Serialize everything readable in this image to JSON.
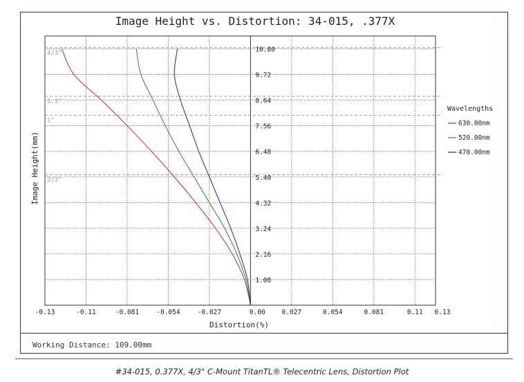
{
  "chart_data": {
    "type": "line",
    "title": "Image Height vs. Distortion: 34-015, .377X",
    "xlabel": "Distortion(%)",
    "ylabel": "Image Height(mm)",
    "xlim": [
      -0.135,
      0.1215
    ],
    "ylim": [
      0,
      11.34
    ],
    "x_ticks": [
      "-0.13",
      "-0.11",
      "-0.081",
      "-0.054",
      "-0.027",
      "0.00",
      "0.027",
      "0.054",
      "0.081",
      "0.11",
      "0.13"
    ],
    "x_tick_values": [
      -0.135,
      -0.108,
      -0.081,
      -0.054,
      -0.027,
      0.0,
      0.027,
      0.054,
      0.081,
      0.108,
      0.135
    ],
    "y_ticks": [
      "1.08",
      "2.16",
      "3.24",
      "4.32",
      "5.40",
      "6.48",
      "7.56",
      "8.64",
      "9.72",
      "10.80"
    ],
    "y_tick_values": [
      1.08,
      2.16,
      3.24,
      4.32,
      5.4,
      6.48,
      7.56,
      8.64,
      9.72,
      10.8
    ],
    "grid": true,
    "sensor_markers": [
      {
        "label": "4/3\"",
        "value": 10.85
      },
      {
        "label": "1.1\"",
        "value": 8.8
      },
      {
        "label": "1\"",
        "value": 8.0
      },
      {
        "label": "2/3\"",
        "value": 5.5
      }
    ],
    "legend_title": "Wavelengths",
    "legend_position": "right",
    "series": [
      {
        "name": "630.00nm",
        "color": "#d62728",
        "x": [
          0,
          -0.004,
          -0.012,
          -0.023,
          -0.036,
          -0.05,
          -0.065,
          -0.081,
          -0.098,
          -0.116,
          -0.124
        ],
        "y": [
          0,
          1.08,
          2.16,
          3.24,
          4.32,
          5.4,
          6.48,
          7.56,
          8.64,
          9.72,
          10.8
        ]
      },
      {
        "name": "520.00nm",
        "color": "#2a8a2a",
        "x": [
          0,
          -0.003,
          -0.009,
          -0.017,
          -0.027,
          -0.037,
          -0.047,
          -0.056,
          -0.064,
          -0.072,
          -0.075
        ],
        "y": [
          0,
          1.08,
          2.16,
          3.24,
          4.32,
          5.4,
          6.48,
          7.56,
          8.64,
          9.72,
          10.8
        ]
      },
      {
        "name": "470.00nm",
        "color": "#1f1fbf",
        "x": [
          0,
          -0.002,
          -0.007,
          -0.013,
          -0.02,
          -0.027,
          -0.034,
          -0.04,
          -0.046,
          -0.05,
          -0.048
        ],
        "y": [
          0,
          1.08,
          2.16,
          3.24,
          4.32,
          5.4,
          6.48,
          7.56,
          8.64,
          9.72,
          10.8
        ]
      }
    ]
  },
  "footer": {
    "working_distance": "Working Distance: 109.00mm"
  },
  "caption": "#34-015, 0.377X, 4/3\" C-Mount TitanTL® Telecentric Lens, Distortion Plot"
}
